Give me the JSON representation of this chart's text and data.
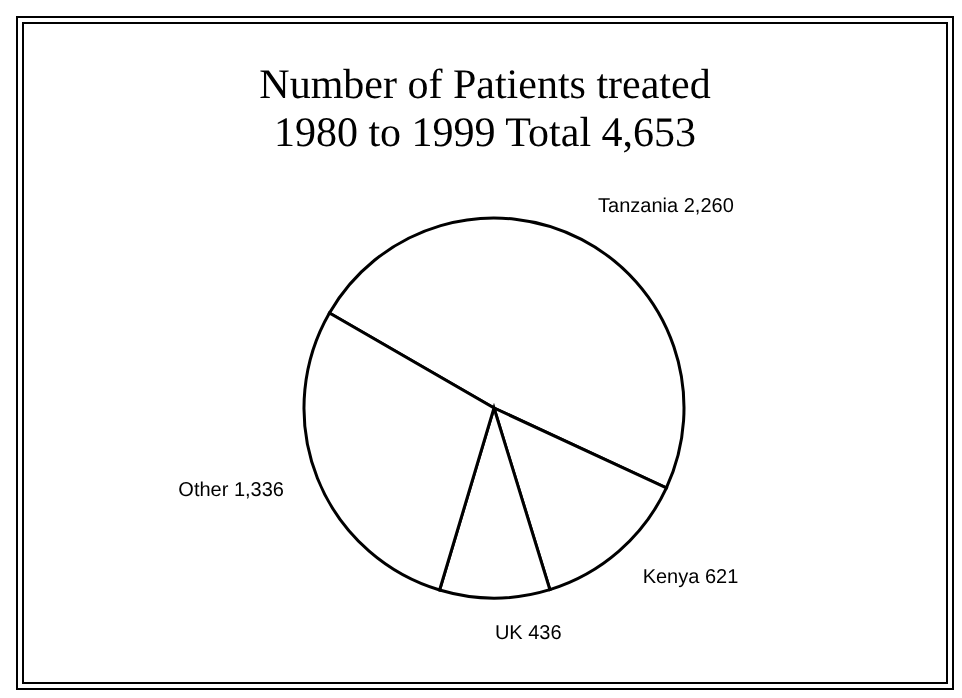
{
  "chart_data": {
    "type": "pie",
    "title": "Number of Patients treated\n1980 to 1999 Total 4,653",
    "categories": [
      "Tanzania",
      "Kenya",
      "UK",
      "Other"
    ],
    "values": [
      2260,
      621,
      436,
      1336
    ],
    "colors": [
      "#ffffff",
      "#ffffff",
      "#ffffff",
      "#ffffff"
    ],
    "value_labels": [
      "2,260",
      "621",
      "436",
      "1,336"
    ],
    "legend": false
  }
}
